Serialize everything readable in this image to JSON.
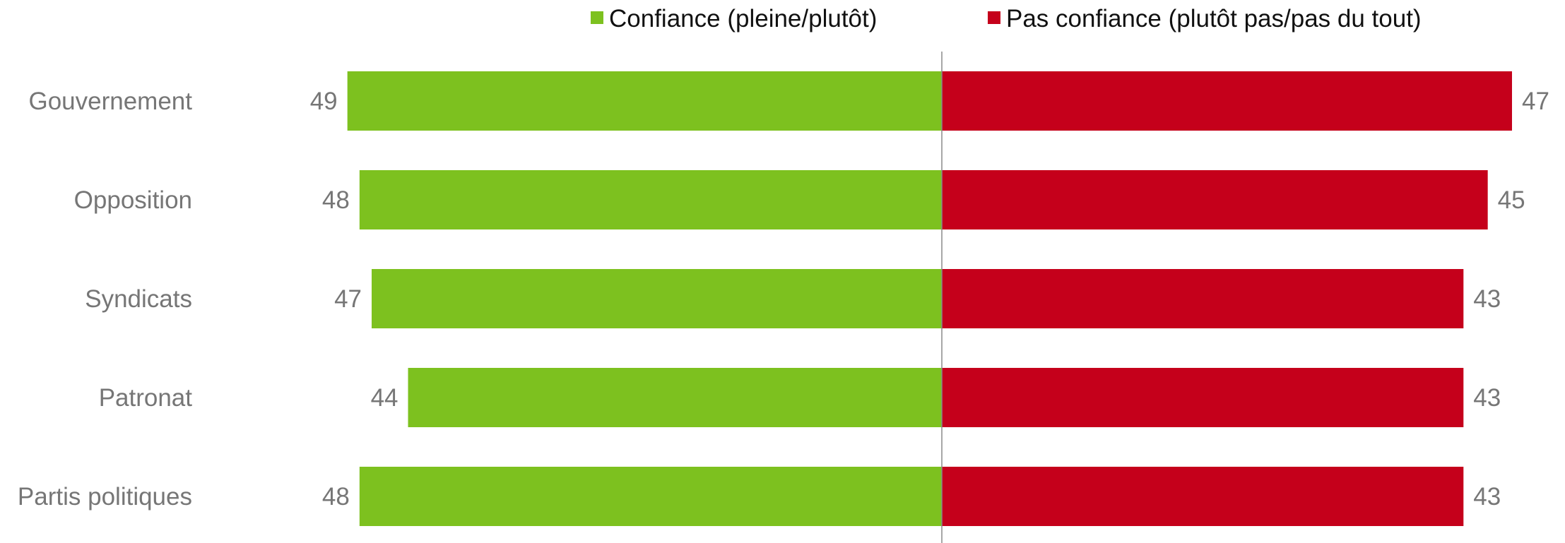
{
  "chart_data": {
    "type": "bar",
    "orientation": "horizontal-diverging",
    "categories": [
      "Gouvernement",
      "Opposition",
      "Syndicats",
      "Patronat",
      "Partis politiques"
    ],
    "series": [
      {
        "name": "Confiance (pleine/plutôt)",
        "color": "#7dc11f",
        "direction": "left",
        "values": [
          49,
          48,
          47,
          44,
          48
        ]
      },
      {
        "name": "Pas confiance (plutôt pas/pas du tout)",
        "color": "#c5001b",
        "direction": "right",
        "values": [
          47,
          45,
          43,
          43,
          43
        ]
      }
    ],
    "value_labels": {
      "left": [
        "49",
        "48",
        "47",
        "44",
        "48"
      ],
      "right": [
        "47",
        "45",
        "43",
        "43",
        "43"
      ]
    },
    "title": "",
    "xlabel": "",
    "ylabel": "",
    "xlim": [
      -49,
      49
    ],
    "grid": false,
    "legend_position": "top"
  }
}
